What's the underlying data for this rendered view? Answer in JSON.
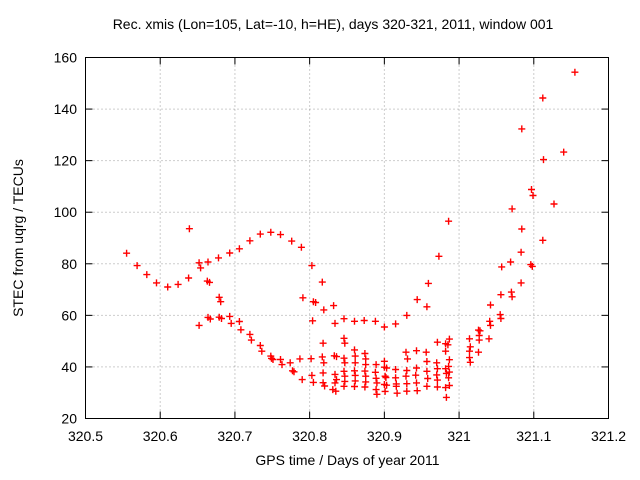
{
  "chart_data": {
    "type": "scatter",
    "title": "Rec. xmis (Lon=105, Lat=-10, h=HE), days 320-321, 2011, window 001",
    "xlabel": "GPS time / Days of year 2011",
    "ylabel": "STEC from uqrg / TECUs",
    "xlim": [
      320.5,
      321.2
    ],
    "ylim": [
      20,
      160
    ],
    "xticks": {
      "values": [
        320.5,
        320.6,
        320.7,
        320.8,
        320.9,
        321.0,
        321.1,
        321.2
      ],
      "labels": [
        "320.5",
        "320.6",
        "320.7",
        "320.8",
        "320.9",
        "321",
        "321.1",
        "321.2"
      ]
    },
    "yticks": {
      "values": [
        20,
        40,
        60,
        80,
        100,
        120,
        140,
        160
      ],
      "labels": [
        "20",
        "40",
        "60",
        "80",
        "100",
        "120",
        "140",
        "160"
      ]
    },
    "grid": "dotted",
    "legend": "none",
    "marker": {
      "shape": "plus",
      "color": "#ff0000",
      "size": 7
    },
    "series": [
      {
        "name": "STEC",
        "points": [
          [
            320.555,
            84.1
          ],
          [
            320.569,
            79.3
          ],
          [
            320.582,
            75.8
          ],
          [
            320.595,
            72.6
          ],
          [
            320.61,
            71.0
          ],
          [
            320.624,
            72.0
          ],
          [
            320.638,
            74.5
          ],
          [
            320.639,
            93.6
          ],
          [
            320.652,
            80.4
          ],
          [
            320.654,
            78.4
          ],
          [
            320.664,
            80.7
          ],
          [
            320.678,
            82.3
          ],
          [
            320.693,
            84.2
          ],
          [
            320.706,
            85.8
          ],
          [
            320.72,
            88.9
          ],
          [
            320.734,
            91.5
          ],
          [
            320.748,
            92.2
          ],
          [
            320.761,
            91.3
          ],
          [
            320.776,
            88.8
          ],
          [
            320.789,
            86.4
          ],
          [
            320.803,
            79.3
          ],
          [
            320.817,
            72.9
          ],
          [
            320.652,
            56.1
          ],
          [
            320.663,
            73.3
          ],
          [
            320.666,
            72.8
          ],
          [
            320.664,
            59.2
          ],
          [
            320.667,
            58.6
          ],
          [
            320.679,
            67.0
          ],
          [
            320.681,
            65.3
          ],
          [
            320.679,
            59.3
          ],
          [
            320.682,
            58.8
          ],
          [
            320.693,
            59.6
          ],
          [
            320.695,
            56.9
          ],
          [
            320.706,
            57.6
          ],
          [
            320.708,
            54.4
          ],
          [
            320.72,
            52.6
          ],
          [
            320.722,
            50.4
          ],
          [
            320.734,
            48.3
          ],
          [
            320.736,
            46.1
          ],
          [
            320.748,
            44.2
          ],
          [
            320.749,
            43.3
          ],
          [
            320.751,
            42.9
          ],
          [
            320.761,
            42.9
          ],
          [
            320.763,
            40.9
          ],
          [
            320.774,
            41.6
          ],
          [
            320.777,
            38.5
          ],
          [
            320.779,
            38.1
          ],
          [
            320.787,
            43.1
          ],
          [
            320.79,
            35.1
          ],
          [
            320.791,
            66.8
          ],
          [
            320.805,
            65.3
          ],
          [
            320.808,
            65.0
          ],
          [
            320.804,
            57.9
          ],
          [
            320.819,
            62.1
          ],
          [
            320.832,
            63.8
          ],
          [
            320.834,
            56.9
          ],
          [
            320.846,
            58.7
          ],
          [
            320.86,
            57.7
          ],
          [
            320.873,
            58.0
          ],
          [
            320.888,
            57.7
          ],
          [
            320.9,
            55.5
          ],
          [
            320.915,
            56.7
          ],
          [
            320.93,
            60.0
          ],
          [
            320.944,
            66.1
          ],
          [
            320.957,
            63.3
          ],
          [
            320.959,
            72.4
          ],
          [
            320.973,
            82.9
          ],
          [
            320.986,
            96.5
          ],
          [
            320.802,
            43.2
          ],
          [
            320.803,
            36.7
          ],
          [
            320.805,
            34.0
          ],
          [
            320.818,
            49.2
          ],
          [
            320.817,
            43.9
          ],
          [
            320.819,
            41.6
          ],
          [
            320.818,
            37.7
          ],
          [
            320.818,
            33.9
          ],
          [
            320.82,
            32.6
          ],
          [
            320.833,
            44.3
          ],
          [
            320.836,
            44.0
          ],
          [
            320.834,
            37.1
          ],
          [
            320.836,
            35.1
          ],
          [
            320.834,
            33.8
          ],
          [
            320.831,
            31.2
          ],
          [
            320.835,
            30.6
          ],
          [
            320.846,
            51.1
          ],
          [
            320.847,
            49.2
          ],
          [
            320.846,
            43.4
          ],
          [
            320.847,
            41.6
          ],
          [
            320.846,
            38.3
          ],
          [
            320.847,
            36.4
          ],
          [
            320.847,
            34.4
          ],
          [
            320.846,
            32.5
          ],
          [
            320.86,
            46.6
          ],
          [
            320.861,
            44.2
          ],
          [
            320.861,
            41.6
          ],
          [
            320.86,
            38.5
          ],
          [
            320.861,
            36.7
          ],
          [
            320.861,
            34.6
          ],
          [
            320.86,
            32.4
          ],
          [
            320.874,
            45.2
          ],
          [
            320.875,
            43.1
          ],
          [
            320.875,
            40.9
          ],
          [
            320.874,
            38.4
          ],
          [
            320.875,
            36.4
          ],
          [
            320.875,
            34.2
          ],
          [
            320.874,
            32.2
          ],
          [
            320.889,
            40.9
          ],
          [
            320.888,
            37.9
          ],
          [
            320.889,
            35.6
          ],
          [
            320.89,
            33.8
          ],
          [
            320.889,
            31.2
          ],
          [
            320.89,
            29.4
          ],
          [
            320.9,
            42.2
          ],
          [
            320.9,
            39.9
          ],
          [
            320.903,
            39.6
          ],
          [
            320.901,
            36.4
          ],
          [
            320.902,
            35.9
          ],
          [
            320.9,
            33.2
          ],
          [
            320.903,
            32.9
          ],
          [
            320.901,
            30.5
          ],
          [
            320.915,
            39.0
          ],
          [
            320.915,
            35.8
          ],
          [
            320.916,
            33.4
          ],
          [
            320.916,
            32.5
          ],
          [
            320.917,
            29.8
          ],
          [
            320.929,
            45.7
          ],
          [
            320.931,
            43.1
          ],
          [
            320.93,
            38.6
          ],
          [
            320.929,
            36.4
          ],
          [
            320.93,
            33.5
          ],
          [
            320.93,
            30.6
          ],
          [
            320.943,
            46.3
          ],
          [
            320.943,
            39.6
          ],
          [
            320.942,
            36.8
          ],
          [
            320.943,
            33.8
          ],
          [
            320.944,
            30.8
          ],
          [
            320.956,
            45.7
          ],
          [
            320.957,
            42.1
          ],
          [
            320.957,
            38.3
          ],
          [
            320.958,
            35.5
          ],
          [
            320.957,
            32.5
          ],
          [
            320.971,
            49.6
          ],
          [
            320.97,
            41.6
          ],
          [
            320.971,
            39.3
          ],
          [
            320.97,
            36.9
          ],
          [
            320.971,
            34.9
          ],
          [
            320.971,
            32.2
          ],
          [
            320.982,
            49.0
          ],
          [
            320.982,
            46.1
          ],
          [
            320.982,
            39.3
          ],
          [
            320.983,
            37.5
          ],
          [
            320.982,
            32.0
          ],
          [
            320.983,
            28.2
          ],
          [
            320.987,
            50.8
          ],
          [
            320.985,
            48.6
          ],
          [
            320.987,
            42.8
          ],
          [
            320.986,
            40.2
          ],
          [
            320.987,
            38.0
          ],
          [
            320.986,
            35.8
          ],
          [
            320.987,
            32.8
          ],
          [
            321.014,
            50.9
          ],
          [
            321.015,
            47.8
          ],
          [
            321.014,
            46.1
          ],
          [
            321.014,
            43.6
          ],
          [
            321.015,
            41.8
          ],
          [
            321.026,
            54.3
          ],
          [
            321.028,
            54.0
          ],
          [
            321.027,
            52.2
          ],
          [
            321.027,
            50.4
          ],
          [
            321.026,
            45.7
          ],
          [
            321.042,
            64.0
          ],
          [
            321.041,
            57.7
          ],
          [
            321.042,
            56.1
          ],
          [
            321.04,
            50.9
          ],
          [
            321.057,
            78.8
          ],
          [
            321.056,
            68.0
          ],
          [
            321.055,
            60.3
          ],
          [
            321.056,
            58.8
          ],
          [
            321.071,
            101.3
          ],
          [
            321.069,
            80.7
          ],
          [
            321.07,
            69.0
          ],
          [
            321.071,
            67.2
          ],
          [
            321.084,
            132.3
          ],
          [
            321.084,
            93.5
          ],
          [
            321.083,
            84.5
          ],
          [
            321.083,
            72.6
          ],
          [
            321.097,
            108.8
          ],
          [
            321.099,
            106.5
          ],
          [
            321.096,
            79.7
          ],
          [
            321.098,
            79.0
          ],
          [
            321.112,
            144.3
          ],
          [
            321.113,
            120.4
          ],
          [
            321.112,
            89.1
          ],
          [
            321.127,
            103.2
          ],
          [
            321.14,
            123.3
          ],
          [
            321.155,
            154.3
          ]
        ]
      }
    ]
  },
  "style": {
    "background": "#ffffff",
    "border_color": "#000000",
    "grid_color": "#9a9a9a",
    "text_color": "#000000",
    "marker_color": "#ff0000"
  }
}
